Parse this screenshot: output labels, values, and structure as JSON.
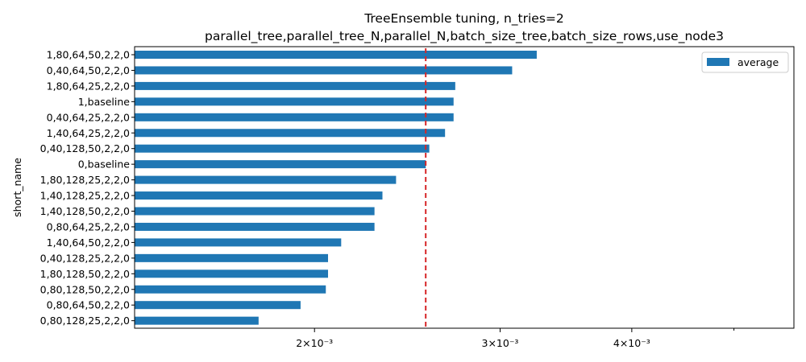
{
  "chart_data": {
    "type": "bar",
    "orientation": "horizontal",
    "title": "TreeEnsemble tuning, n_tries=2",
    "subtitle": "parallel_tree,parallel_tree_N,parallel_N,batch_size_tree,batch_size_rows,use_node3",
    "ylabel": "short_name",
    "xlabel": "",
    "xscale": "log",
    "xlim": [
      0.00135,
      0.0057
    ],
    "x_ticks": [
      {
        "value": 0.002,
        "label": "2×10⁻³"
      },
      {
        "value": 0.003,
        "label": "3×10⁻³"
      },
      {
        "value": 0.004,
        "label": "4×10⁻³"
      }
    ],
    "x_minor_ticks": [
      0.005
    ],
    "categories": [
      "1,80,64,50,2,2,0",
      "0,40,64,50,2,2,0",
      "1,80,64,25,2,2,0",
      "1,baseline",
      "0,40,64,25,2,2,0",
      "1,40,64,25,2,2,0",
      "0,40,128,50,2,2,0",
      "0,baseline",
      "1,80,128,25,2,2,0",
      "1,40,128,25,2,2,0",
      "1,40,128,50,2,2,0",
      "0,80,64,25,2,2,0",
      "1,40,64,50,2,2,0",
      "0,40,128,25,2,2,0",
      "1,80,128,50,2,2,0",
      "0,80,128,50,2,2,0",
      "0,80,64,50,2,2,0",
      "0,80,128,25,2,2,0"
    ],
    "series": [
      {
        "name": "average",
        "color": "#1f77b4",
        "values": [
          0.00325,
          0.00308,
          0.00272,
          0.00271,
          0.00271,
          0.00266,
          0.00257,
          0.00255,
          0.00239,
          0.00232,
          0.00228,
          0.00228,
          0.00212,
          0.00206,
          0.00206,
          0.00205,
          0.00194,
          0.00177
        ]
      }
    ],
    "reference_line": {
      "value": 0.00255,
      "color": "#d62728",
      "style": "dashed"
    },
    "legend": {
      "position": "top-right"
    },
    "grid": false
  }
}
